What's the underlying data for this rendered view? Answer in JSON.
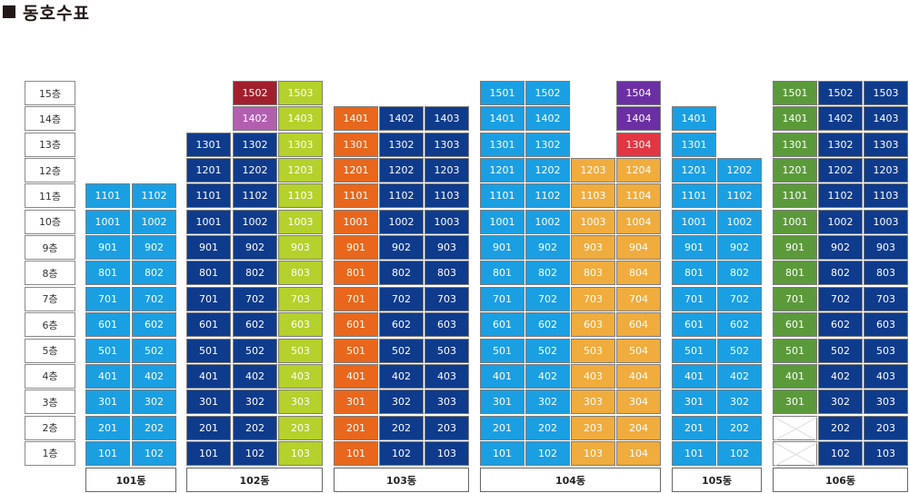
{
  "title": "동호수표",
  "floors": [
    "15층",
    "14층",
    "13층",
    "12층",
    "11층",
    "10층",
    "9층",
    "8층",
    "7층",
    "6층",
    "5층",
    "4층",
    "3층",
    "2층",
    "1층"
  ],
  "colors": {
    "light_blue": "#1a9fe3",
    "dark_blue": "#0e3b8c",
    "lime": "#b5d12b",
    "maroon": "#a11e2d",
    "pink": "#b35fb0",
    "orange": "#e8671d",
    "amber": "#f0ac3d",
    "purple": "#6b2fa3",
    "red": "#e23743",
    "green": "#5b9a3a"
  },
  "buildings": [
    {
      "name": "101동",
      "columns": [
        {
          "line": "01",
          "colors": [
            [
              "light_blue",
              1,
              11
            ]
          ]
        },
        {
          "line": "02",
          "colors": [
            [
              "light_blue",
              1,
              11
            ]
          ]
        }
      ]
    },
    {
      "name": "102동",
      "columns": [
        {
          "line": "01",
          "colors": [
            [
              "dark_blue",
              1,
              13
            ]
          ]
        },
        {
          "line": "02",
          "colors": [
            [
              "dark_blue",
              1,
              13
            ],
            [
              "pink",
              14,
              14
            ],
            [
              "maroon",
              15,
              15
            ]
          ]
        },
        {
          "line": "03",
          "colors": [
            [
              "lime",
              1,
              15
            ]
          ]
        }
      ]
    },
    {
      "name": "103동",
      "columns": [
        {
          "line": "01",
          "colors": [
            [
              "orange",
              1,
              14
            ]
          ]
        },
        {
          "line": "02",
          "colors": [
            [
              "dark_blue",
              1,
              14
            ]
          ]
        },
        {
          "line": "03",
          "colors": [
            [
              "dark_blue",
              1,
              14
            ]
          ]
        }
      ]
    },
    {
      "name": "104동",
      "columns": [
        {
          "line": "01",
          "colors": [
            [
              "light_blue",
              1,
              15
            ]
          ]
        },
        {
          "line": "02",
          "colors": [
            [
              "light_blue",
              1,
              15
            ]
          ]
        },
        {
          "line": "03",
          "colors": [
            [
              "amber",
              1,
              12
            ]
          ]
        },
        {
          "line": "04",
          "colors": [
            [
              "amber",
              1,
              12
            ],
            [
              "red",
              13,
              13
            ],
            [
              "purple",
              14,
              15
            ]
          ]
        }
      ]
    },
    {
      "name": "105동",
      "columns": [
        {
          "line": "01",
          "colors": [
            [
              "light_blue",
              1,
              14
            ]
          ]
        },
        {
          "line": "02",
          "colors": [
            [
              "light_blue",
              1,
              12
            ]
          ]
        }
      ]
    },
    {
      "name": "106동",
      "columns": [
        {
          "line": "01",
          "colors": [
            [
              "green",
              3,
              15
            ],
            [
              "empty",
              1,
              2
            ]
          ]
        },
        {
          "line": "02",
          "colors": [
            [
              "dark_blue",
              1,
              15
            ]
          ]
        },
        {
          "line": "03",
          "colors": [
            [
              "dark_blue",
              1,
              15
            ]
          ]
        }
      ]
    }
  ]
}
